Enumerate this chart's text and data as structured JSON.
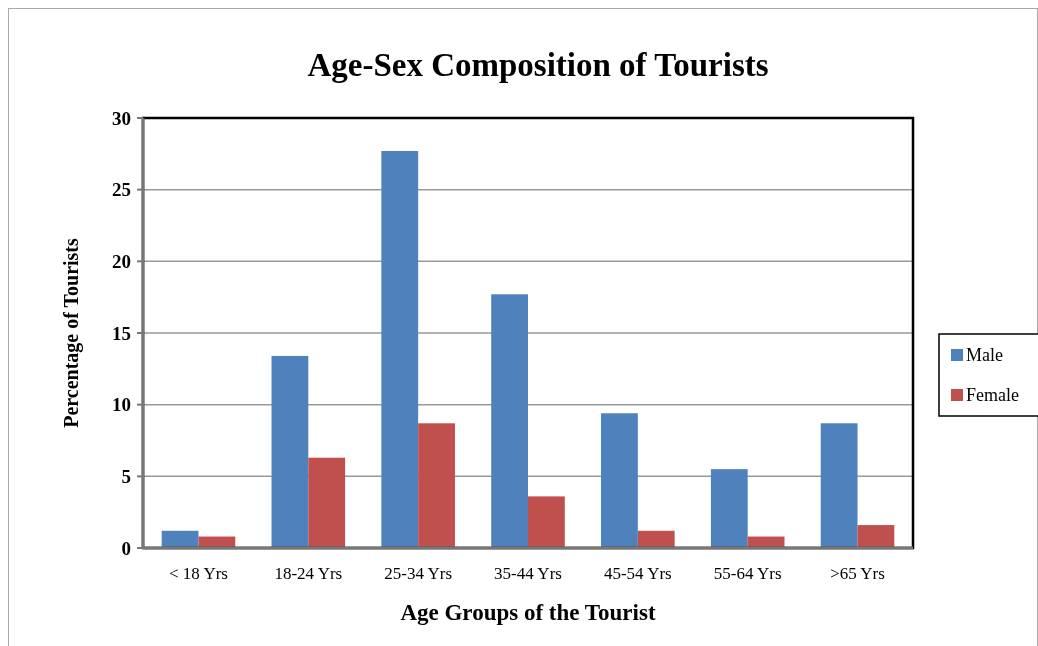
{
  "chart_data": {
    "type": "bar",
    "title": "Age-Sex Composition of Tourists",
    "xlabel": "Age Groups of the Tourist",
    "ylabel": "Percentage of Tourists",
    "categories": [
      "< 18 Yrs",
      "18-24 Yrs",
      "25-34 Yrs",
      "35-44 Yrs",
      "45-54 Yrs",
      "55-64 Yrs",
      ">65 Yrs"
    ],
    "series": [
      {
        "name": "Male",
        "color": "#4f81bd",
        "values": [
          1.2,
          13.4,
          27.7,
          17.7,
          9.4,
          5.5,
          8.7
        ]
      },
      {
        "name": "Female",
        "color": "#c0504d",
        "values": [
          0.8,
          6.3,
          8.7,
          3.6,
          1.2,
          0.8,
          1.6
        ]
      }
    ],
    "ylim": [
      0,
      30
    ],
    "yticks": [
      0,
      5,
      10,
      15,
      20,
      25,
      30
    ],
    "grid": "y",
    "legend": "right"
  }
}
